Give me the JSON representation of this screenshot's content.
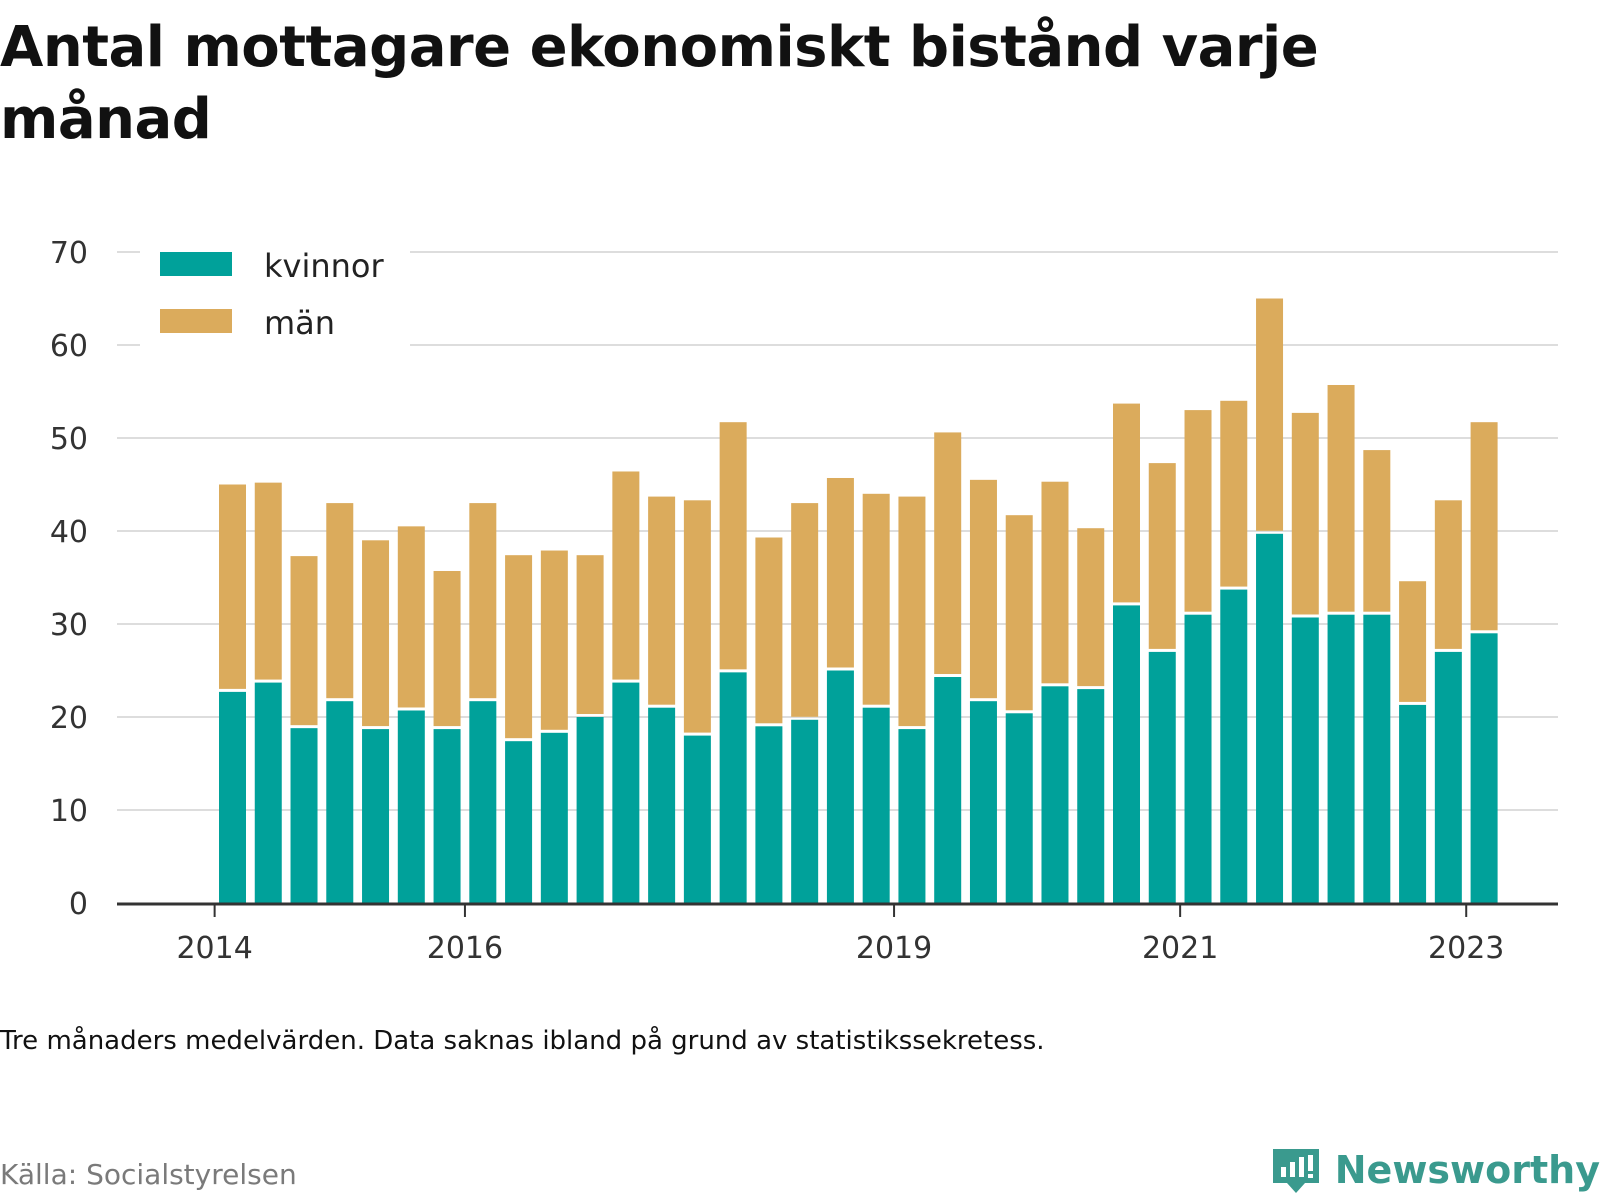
{
  "title": "Antal mottagare ekonomiskt bistånd varje månad",
  "note": "Tre månaders medelvärden. Data saknas ibland på grund av statistikssekretess.",
  "source": "Källa: Socialstyrelsen",
  "brand": "Newsworthy",
  "colors": {
    "kvinnor": "#00a19a",
    "man": "#dbab5c",
    "grid": "#dddddd",
    "axis": "#333333",
    "brand": "#3a9a8e"
  },
  "chart_data": {
    "type": "bar",
    "stacked": true,
    "ylim": [
      0,
      70
    ],
    "yticks": [
      0,
      10,
      20,
      30,
      40,
      50,
      60,
      70
    ],
    "xticks": [
      {
        "label": "2014",
        "before_bar": 0
      },
      {
        "label": "2016",
        "before_bar": 7
      },
      {
        "label": "2019",
        "before_bar": 19
      },
      {
        "label": "2021",
        "before_bar": 27
      },
      {
        "label": "2023",
        "before_bar": 35
      }
    ],
    "legend_position": "top-left",
    "series": [
      {
        "name": "kvinnor",
        "values": [
          22.7,
          23.7,
          18.8,
          21.7,
          18.7,
          20.7,
          18.7,
          21.7,
          17.4,
          18.3,
          20.0,
          23.7,
          21.0,
          18.0,
          24.8,
          19.0,
          19.7,
          25.0,
          21.0,
          18.7,
          24.3,
          21.7,
          20.4,
          23.3,
          23.0,
          32.0,
          27.0,
          31.0,
          33.7,
          39.7,
          30.7,
          31.0,
          31.0,
          21.3,
          27.0,
          29.0
        ]
      },
      {
        "name": "män",
        "values": [
          22.3,
          21.5,
          18.5,
          21.3,
          20.3,
          19.8,
          17.0,
          21.3,
          20.0,
          19.6,
          17.4,
          22.7,
          22.7,
          25.3,
          26.9,
          20.3,
          23.3,
          20.7,
          23.0,
          25.0,
          26.3,
          23.8,
          21.3,
          22.0,
          17.3,
          21.7,
          20.3,
          22.0,
          20.3,
          25.3,
          22.0,
          24.7,
          17.7,
          13.3,
          16.3,
          22.7
        ]
      }
    ]
  }
}
